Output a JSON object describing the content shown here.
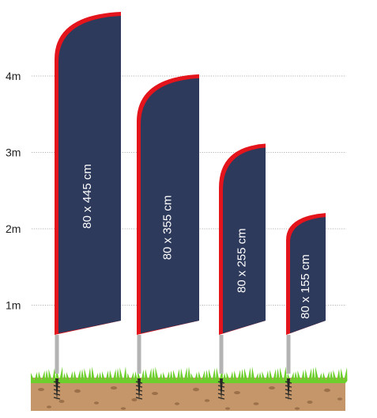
{
  "height_scale": {
    "ticks": [
      {
        "label": "1m",
        "value": 1
      },
      {
        "label": "2m",
        "value": 2
      },
      {
        "label": "3m",
        "value": 3
      },
      {
        "label": "4m",
        "value": 4
      }
    ]
  },
  "flags": [
    {
      "label": "80 x 445 cm",
      "width_cm": 80,
      "height_cm": 445
    },
    {
      "label": "80 x 355 cm",
      "width_cm": 80,
      "height_cm": 355
    },
    {
      "label": "80 x 255 cm",
      "width_cm": 80,
      "height_cm": 255
    },
    {
      "label": "80 x 155 cm",
      "width_cm": 80,
      "height_cm": 155
    }
  ],
  "colors": {
    "flag_fill": "#2e3a5c",
    "flag_edge": "#e3141b",
    "pole": "#b3b3b3",
    "gridline": "#9a9a9a",
    "grass": "#6ccf2c",
    "soil": "#c4966a",
    "pebble": "#9c7049",
    "spike": "#262626"
  }
}
